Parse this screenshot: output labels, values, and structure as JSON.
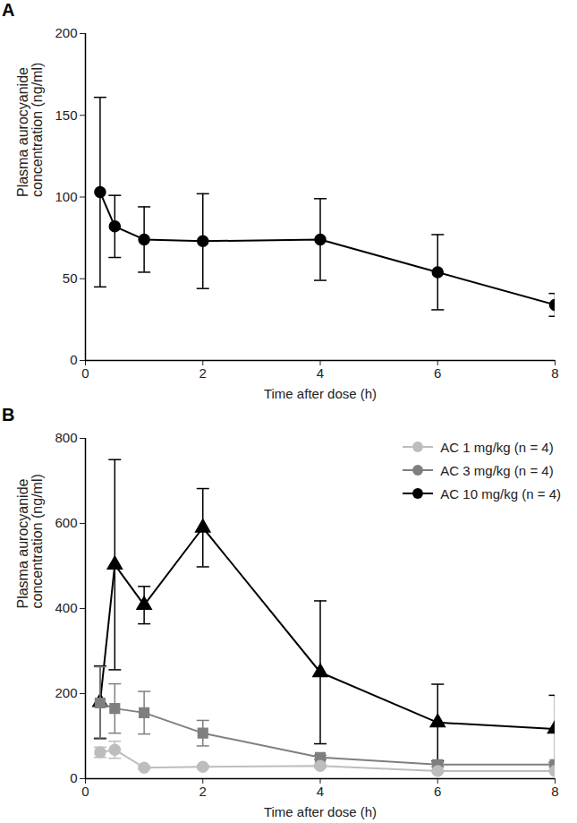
{
  "chart_data": [
    {
      "type": "line",
      "title": "A",
      "xlabel": "Time after dose (h)",
      "ylabel": "Plasma aurocyanide\nconcentration (ng/ml)",
      "x": [
        0.25,
        0.5,
        1,
        2,
        4,
        6,
        8
      ],
      "values": [
        103,
        82,
        74,
        73,
        74,
        54,
        34
      ],
      "error": [
        58,
        19,
        20,
        29,
        25,
        23,
        7
      ],
      "color": "#000000",
      "marker": "circle",
      "xlim": [
        0,
        8
      ],
      "xticks": [
        0,
        2,
        4,
        6,
        8
      ],
      "ylim": [
        0,
        200
      ],
      "yticks": [
        0,
        50,
        100,
        150,
        200
      ]
    },
    {
      "type": "line",
      "title": "B",
      "xlabel": "Time after dose (h)",
      "ylabel": "Plasma aurocyanide\nconcentration (ng/ml)",
      "x": [
        0.25,
        0.5,
        1,
        2,
        4,
        6,
        8
      ],
      "series": [
        {
          "name": "AC 1 mg/kg (n = 4)",
          "color": "#bdbdbd",
          "marker": "circle",
          "values": [
            62,
            68,
            26,
            28,
            30,
            18,
            18
          ],
          "error": [
            12,
            20,
            3,
            3,
            4,
            3,
            3
          ]
        },
        {
          "name": "AC 3 mg/kg (n = 4)",
          "color": "#7f7f7f",
          "marker": "square",
          "values": [
            178,
            165,
            155,
            107,
            50,
            33,
            33
          ],
          "error": [
            85,
            58,
            50,
            30,
            5,
            5,
            5
          ]
        },
        {
          "name": "AC 10 mg/kg (n = 4)",
          "color": "#000000",
          "marker": "triangle",
          "values": [
            180,
            503,
            408,
            590,
            250,
            132,
            117
          ],
          "error": [
            85,
            247,
            44,
            92,
            168,
            90,
            79
          ]
        }
      ],
      "legend": "top-right",
      "xlim": [
        0,
        8
      ],
      "xticks": [
        0,
        2,
        4,
        6,
        8
      ],
      "ylim": [
        0,
        800
      ],
      "yticks": [
        0,
        200,
        400,
        600,
        800
      ]
    }
  ]
}
